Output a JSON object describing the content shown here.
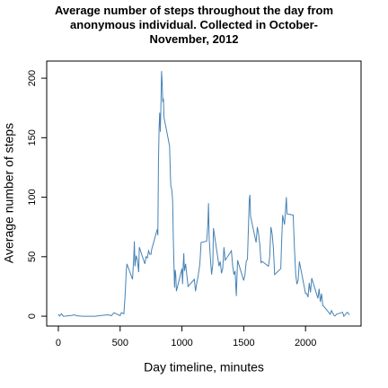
{
  "chart_data": {
    "type": "line",
    "title": "Average number of steps throughout the day from anonymous individual. Collected in October-November, 2012",
    "x_label": "Day timeline, minutes",
    "y_label": "Average number of steps",
    "xlim": [
      -94.2,
      2449.2
    ],
    "ylim": [
      -8.25,
      214.4
    ],
    "xticks": [
      0,
      500,
      1000,
      1500,
      2000
    ],
    "yticks": [
      0,
      50,
      100,
      150,
      200
    ],
    "series": [
      {
        "color": "#4682b4",
        "x": [
          0,
          10,
          25,
          40,
          55,
          110,
          130,
          150,
          200,
          230,
          300,
          330,
          400,
          430,
          450,
          500,
          510,
          530,
          540,
          550,
          555,
          600,
          610,
          615,
          620,
          630,
          640,
          650,
          655,
          700,
          710,
          720,
          730,
          740,
          750,
          755,
          800,
          805,
          810,
          815,
          820,
          825,
          830,
          835,
          840,
          845,
          850,
          855,
          900,
          905,
          910,
          915,
          920,
          925,
          930,
          935,
          940,
          945,
          950,
          955,
          1000,
          1005,
          1010,
          1015,
          1020,
          1030,
          1040,
          1050,
          1100,
          1110,
          1120,
          1130,
          1145,
          1155,
          1200,
          1210,
          1215,
          1220,
          1230,
          1240,
          1250,
          1255,
          1300,
          1310,
          1320,
          1330,
          1340,
          1350,
          1400,
          1410,
          1420,
          1430,
          1440,
          1450,
          1500,
          1510,
          1520,
          1530,
          1545,
          1550,
          1555,
          1600,
          1610,
          1620,
          1630,
          1640,
          1650,
          1700,
          1710,
          1720,
          1730,
          1740,
          1750,
          1800,
          1805,
          1815,
          1830,
          1845,
          1850,
          1900,
          1910,
          1920,
          1930,
          1940,
          1950,
          2000,
          2010,
          2020,
          2030,
          2040,
          2050,
          2100,
          2110,
          2120,
          2130,
          2140,
          2150,
          2200,
          2210,
          2220,
          2230,
          2240,
          2250,
          2300,
          2310,
          2320,
          2330,
          2340,
          2355
        ],
        "values": [
          1.7,
          0.1,
          2.1,
          0,
          0.1,
          0.7,
          1.2,
          0.3,
          0,
          0,
          0,
          0.4,
          1.2,
          0.5,
          3,
          0.5,
          3,
          2,
          17,
          39,
          44,
          31,
          49,
          63,
          42,
          51,
          47,
          37,
          58,
          44,
          50,
          49,
          55,
          52,
          52,
          56,
          73,
          68,
          129,
          158,
          171,
          155,
          177,
          206,
          196,
          180,
          183,
          167,
          143,
          124,
          109,
          108,
          104,
          96,
          66,
          45,
          24,
          39,
          35,
          21,
          40,
          27,
          42,
          53,
          38,
          44,
          34,
          25,
          31,
          21,
          28,
          33,
          44,
          62,
          63,
          78,
          95,
          66,
          49,
          35,
          44,
          74,
          42,
          46,
          36,
          40,
          58,
          47,
          55,
          43,
          35,
          38,
          17,
          47,
          30,
          35,
          46,
          48,
          98,
          102,
          84,
          62,
          75,
          69,
          60,
          45,
          46,
          42,
          50,
          75,
          69,
          57,
          35,
          40,
          58,
          85,
          77,
          100,
          86,
          85,
          58,
          36,
          27,
          30,
          46,
          19,
          19,
          16,
          28,
          20,
          32,
          15,
          23,
          12,
          19,
          9,
          8,
          1.6,
          4.8,
          2.6,
          0.7,
          0.2,
          1.6,
          3.3,
          0,
          1,
          2.6,
          3.3,
          1.1
        ]
      }
    ]
  }
}
